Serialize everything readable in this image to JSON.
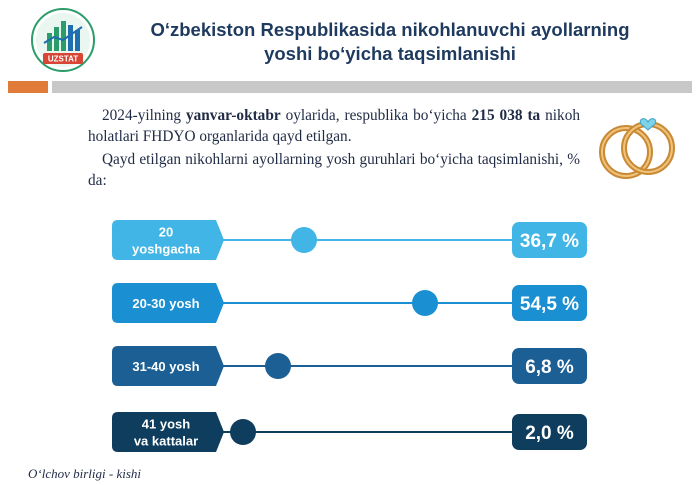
{
  "logo": {
    "text": "UZSTAT"
  },
  "title": {
    "line1": "O‘zbekiston Respublikasida  nikohlanuvchi ayollarning",
    "line2": "yoshi bo‘yicha taqsimlanishi"
  },
  "intro": {
    "part1": "2024-yilning ",
    "bold1": "yanvar-oktabr",
    "part2": " oylarida, respublika bo‘yicha ",
    "bold2": "215 038 ta",
    "part3": " nikoh holatlari FHDYO organlarida qayd etilgan.",
    "sentence2": "Qayd etilgan nikohlarni ayollarning yosh guruhlari bo‘yicha taqsimlanishi, % da:"
  },
  "footer": "O‘lchov birligi - kishi",
  "colors": {
    "accent_orange": "#e07b39",
    "divider_gray": "#c8c8c8",
    "title_blue": "#1f3a5f",
    "ring_gold": "#d9953a"
  },
  "chart_data": {
    "type": "dot",
    "categories": [
      "20 yoshgacha",
      "20-30 yosh",
      "31-40 yosh",
      "41 yosh va kattalar"
    ],
    "category_lines": [
      [
        "20",
        "yoshgacha"
      ],
      [
        "20-30 yosh"
      ],
      [
        "31-40 yosh"
      ],
      [
        "41 yosh",
        "va kattalar"
      ]
    ],
    "values": [
      36.7,
      54.5,
      6.8,
      2.0
    ],
    "value_labels": [
      "36,7 %",
      "54,5 %",
      "6,8 %",
      "2,0 %"
    ],
    "colors": [
      "#41b6e6",
      "#1a8fd1",
      "#1b5f94",
      "#0e3d5e"
    ]
  }
}
